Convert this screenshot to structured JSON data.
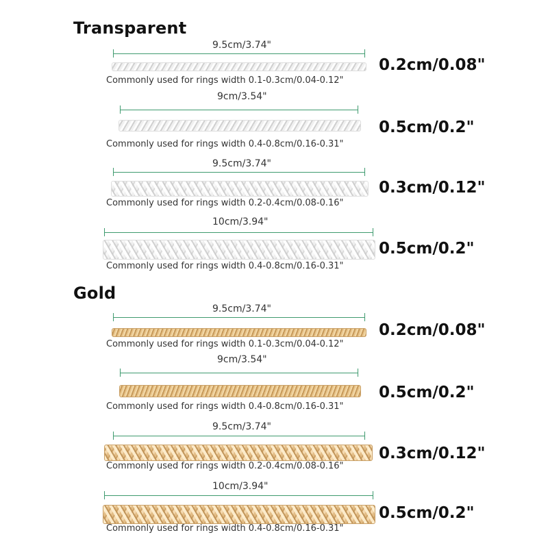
{
  "sections": [
    {
      "title": "Transparent",
      "items": [
        {
          "length": "9.5cm/3.74\"",
          "usage": "Commonly used for rings width 0.1-0.3cm/0.04-0.12\"",
          "size": "0.2cm/0.08\""
        },
        {
          "length": "9cm/3.54\"",
          "usage": "Commonly used for rings width 0.4-0.8cm/0.16-0.31\"",
          "size": "0.5cm/0.2\""
        },
        {
          "length": "9.5cm/3.74\"",
          "usage": "Commonly used for rings width 0.2-0.4cm/0.08-0.16\"",
          "size": "0.3cm/0.12\""
        },
        {
          "length": "10cm/3.94\"",
          "usage": "Commonly used for rings width 0.4-0.8cm/0.16-0.31\"",
          "size": "0.5cm/0.2\""
        }
      ]
    },
    {
      "title": "Gold",
      "items": [
        {
          "length": "9.5cm/3.74\"",
          "usage": "Commonly used for rings width 0.1-0.3cm/0.04-0.12\"",
          "size": "0.2cm/0.08\""
        },
        {
          "length": "9cm/3.54\"",
          "usage": "Commonly used for rings width 0.4-0.8cm/0.16-0.31\"",
          "size": "0.5cm/0.2\""
        },
        {
          "length": "9.5cm/3.74\"",
          "usage": "Commonly used for rings width 0.2-0.4cm/0.08-0.16\"",
          "size": "0.3cm/0.12\""
        },
        {
          "length": "10cm/3.94\"",
          "usage": "Commonly used for rings width 0.4-0.8cm/0.16-0.31\"",
          "size": "0.5cm/0.2\""
        }
      ]
    }
  ]
}
